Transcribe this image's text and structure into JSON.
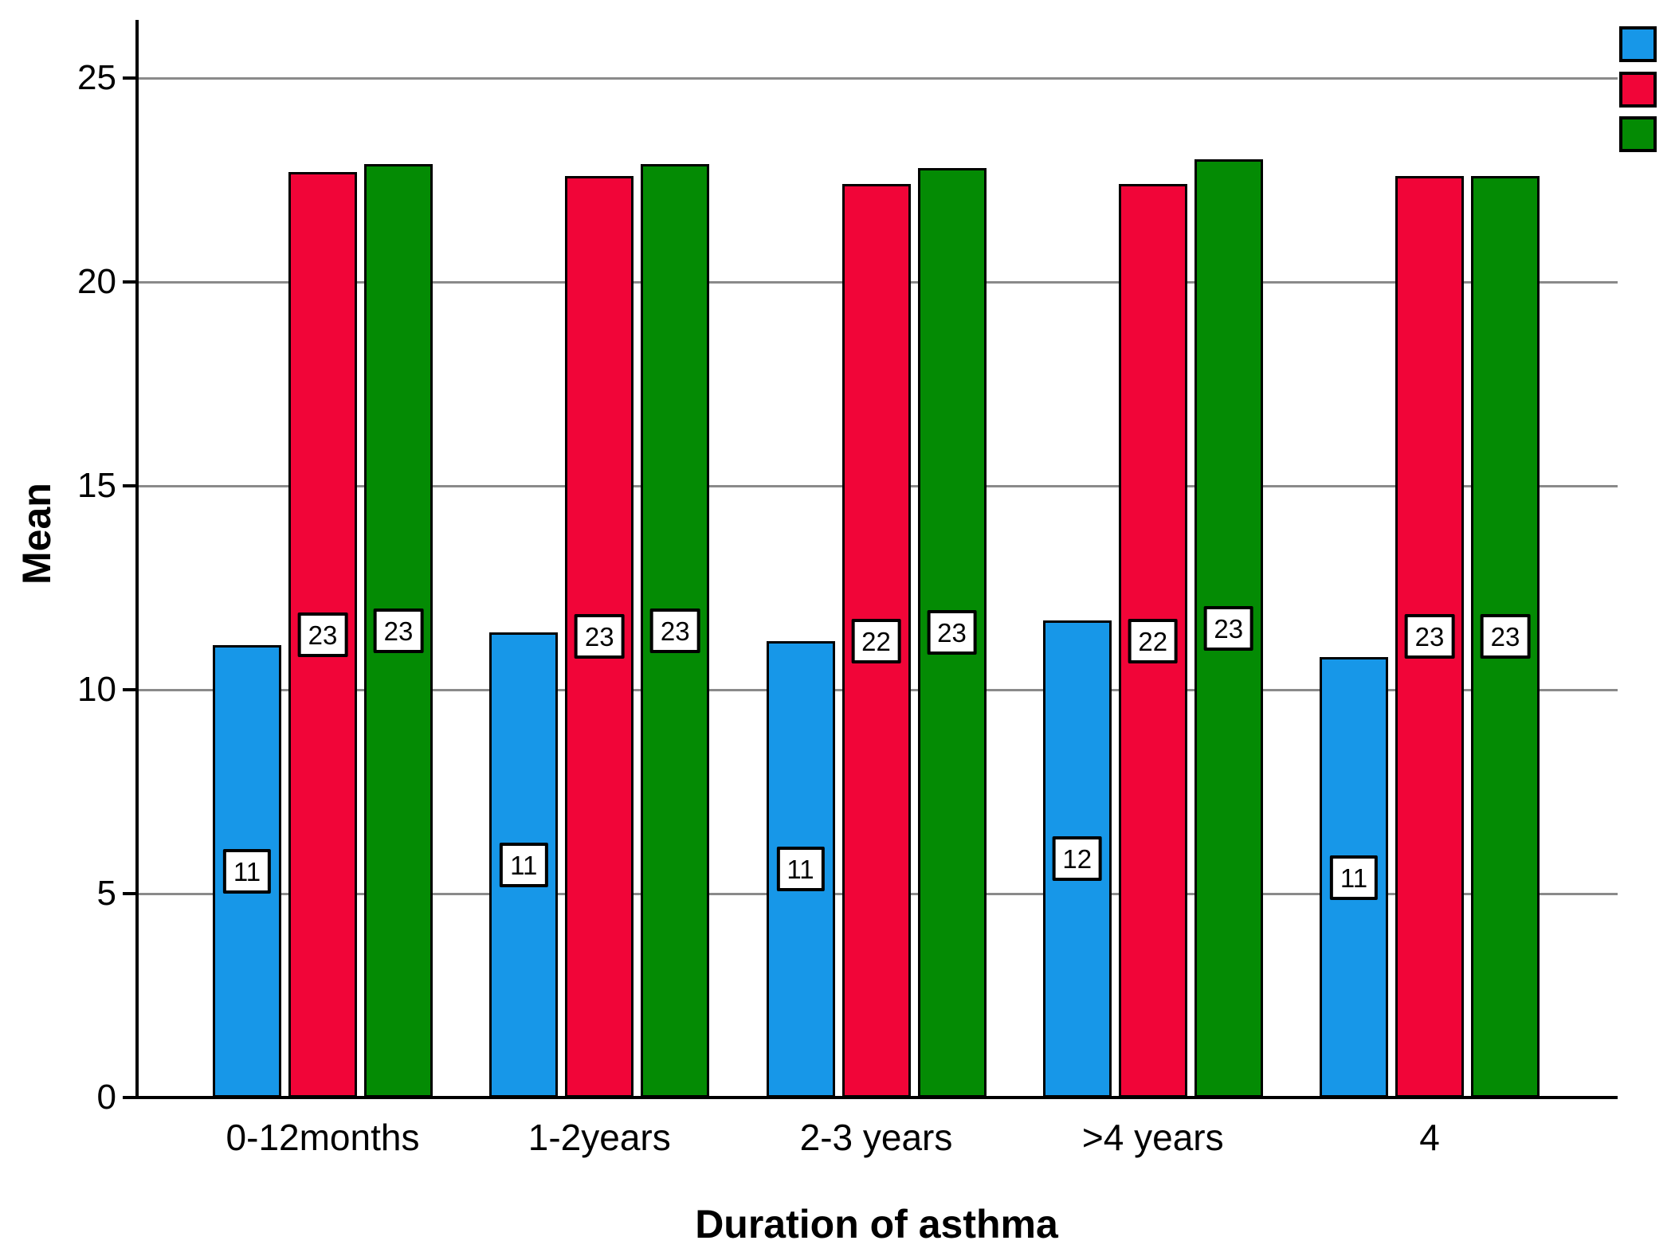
{
  "page": {
    "background": "#ffffff"
  },
  "chart_data": {
    "type": "bar",
    "title": "",
    "xlabel": "Duration of asthma",
    "ylabel": "Mean",
    "categories": [
      "0-12months",
      "1-2years",
      "2-3 years",
      ">4 years",
      "4"
    ],
    "series": [
      {
        "name": "blue",
        "color": "#1797e8",
        "values": [
          11.1,
          11.4,
          11.2,
          11.7,
          10.8
        ],
        "labels": [
          "11",
          "11",
          "11",
          "12",
          "11"
        ]
      },
      {
        "name": "red",
        "color": "#f10538",
        "values": [
          22.7,
          22.6,
          22.4,
          22.4,
          22.6
        ],
        "labels": [
          "23",
          "23",
          "22",
          "22",
          "23"
        ]
      },
      {
        "name": "green",
        "color": "#048b04",
        "values": [
          22.9,
          22.9,
          22.8,
          23.0,
          22.6
        ],
        "labels": [
          "23",
          "23",
          "23",
          "23",
          "23"
        ]
      }
    ],
    "yticks": [
      "0",
      "5",
      "10",
      "15",
      "20",
      "25"
    ],
    "ylim": [
      0,
      26.4
    ],
    "grid": true,
    "grid_color": "#8a8a8a",
    "bar_border_color": "#000000",
    "legend_position": "top-right",
    "legend_labels_visible": false
  }
}
